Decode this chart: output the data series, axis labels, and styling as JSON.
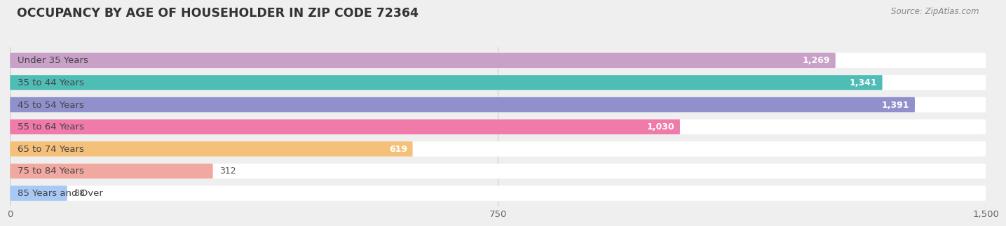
{
  "title": "OCCUPANCY BY AGE OF HOUSEHOLDER IN ZIP CODE 72364",
  "source": "Source: ZipAtlas.com",
  "categories": [
    "Under 35 Years",
    "35 to 44 Years",
    "45 to 54 Years",
    "55 to 64 Years",
    "65 to 74 Years",
    "75 to 84 Years",
    "85 Years and Over"
  ],
  "values": [
    1269,
    1341,
    1391,
    1030,
    619,
    312,
    88
  ],
  "bar_colors": [
    "#c9a0c8",
    "#4dbdb5",
    "#9090cc",
    "#f07aaa",
    "#f5c07a",
    "#f0a8a0",
    "#a8c8f5"
  ],
  "xlim_max": 1500,
  "xticks": [
    0,
    750,
    1500
  ],
  "bg_color": "#efefef",
  "bar_bg_color": "#ffffff",
  "title_fontsize": 12.5,
  "label_fontsize": 9.5,
  "value_fontsize": 9,
  "source_fontsize": 8.5,
  "bar_height": 0.68,
  "bar_gap": 1.0
}
